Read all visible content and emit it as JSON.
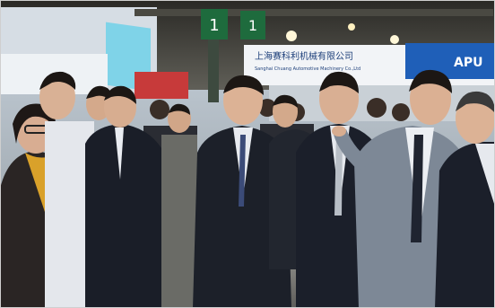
{
  "scene": {
    "description_text": "",
    "signs": {
      "hall_number_left": "1",
      "hall_number_right": "1",
      "banner_cn": "上海赛科利机械有限公司",
      "banner_en": "Sanghai Chuang Automotive Machinery Co.,Ltd",
      "logo_text": "APU"
    },
    "colors": {
      "ceiling": "#3b3a35",
      "banner_blue": "#1f5fb8",
      "banner_white": "#f2f4f7",
      "suit_dark": "#1a1e28",
      "shirt_white": "#e9ecf1",
      "scarf_yellow": "#d9a12a",
      "floor": "#7a7a76"
    }
  }
}
